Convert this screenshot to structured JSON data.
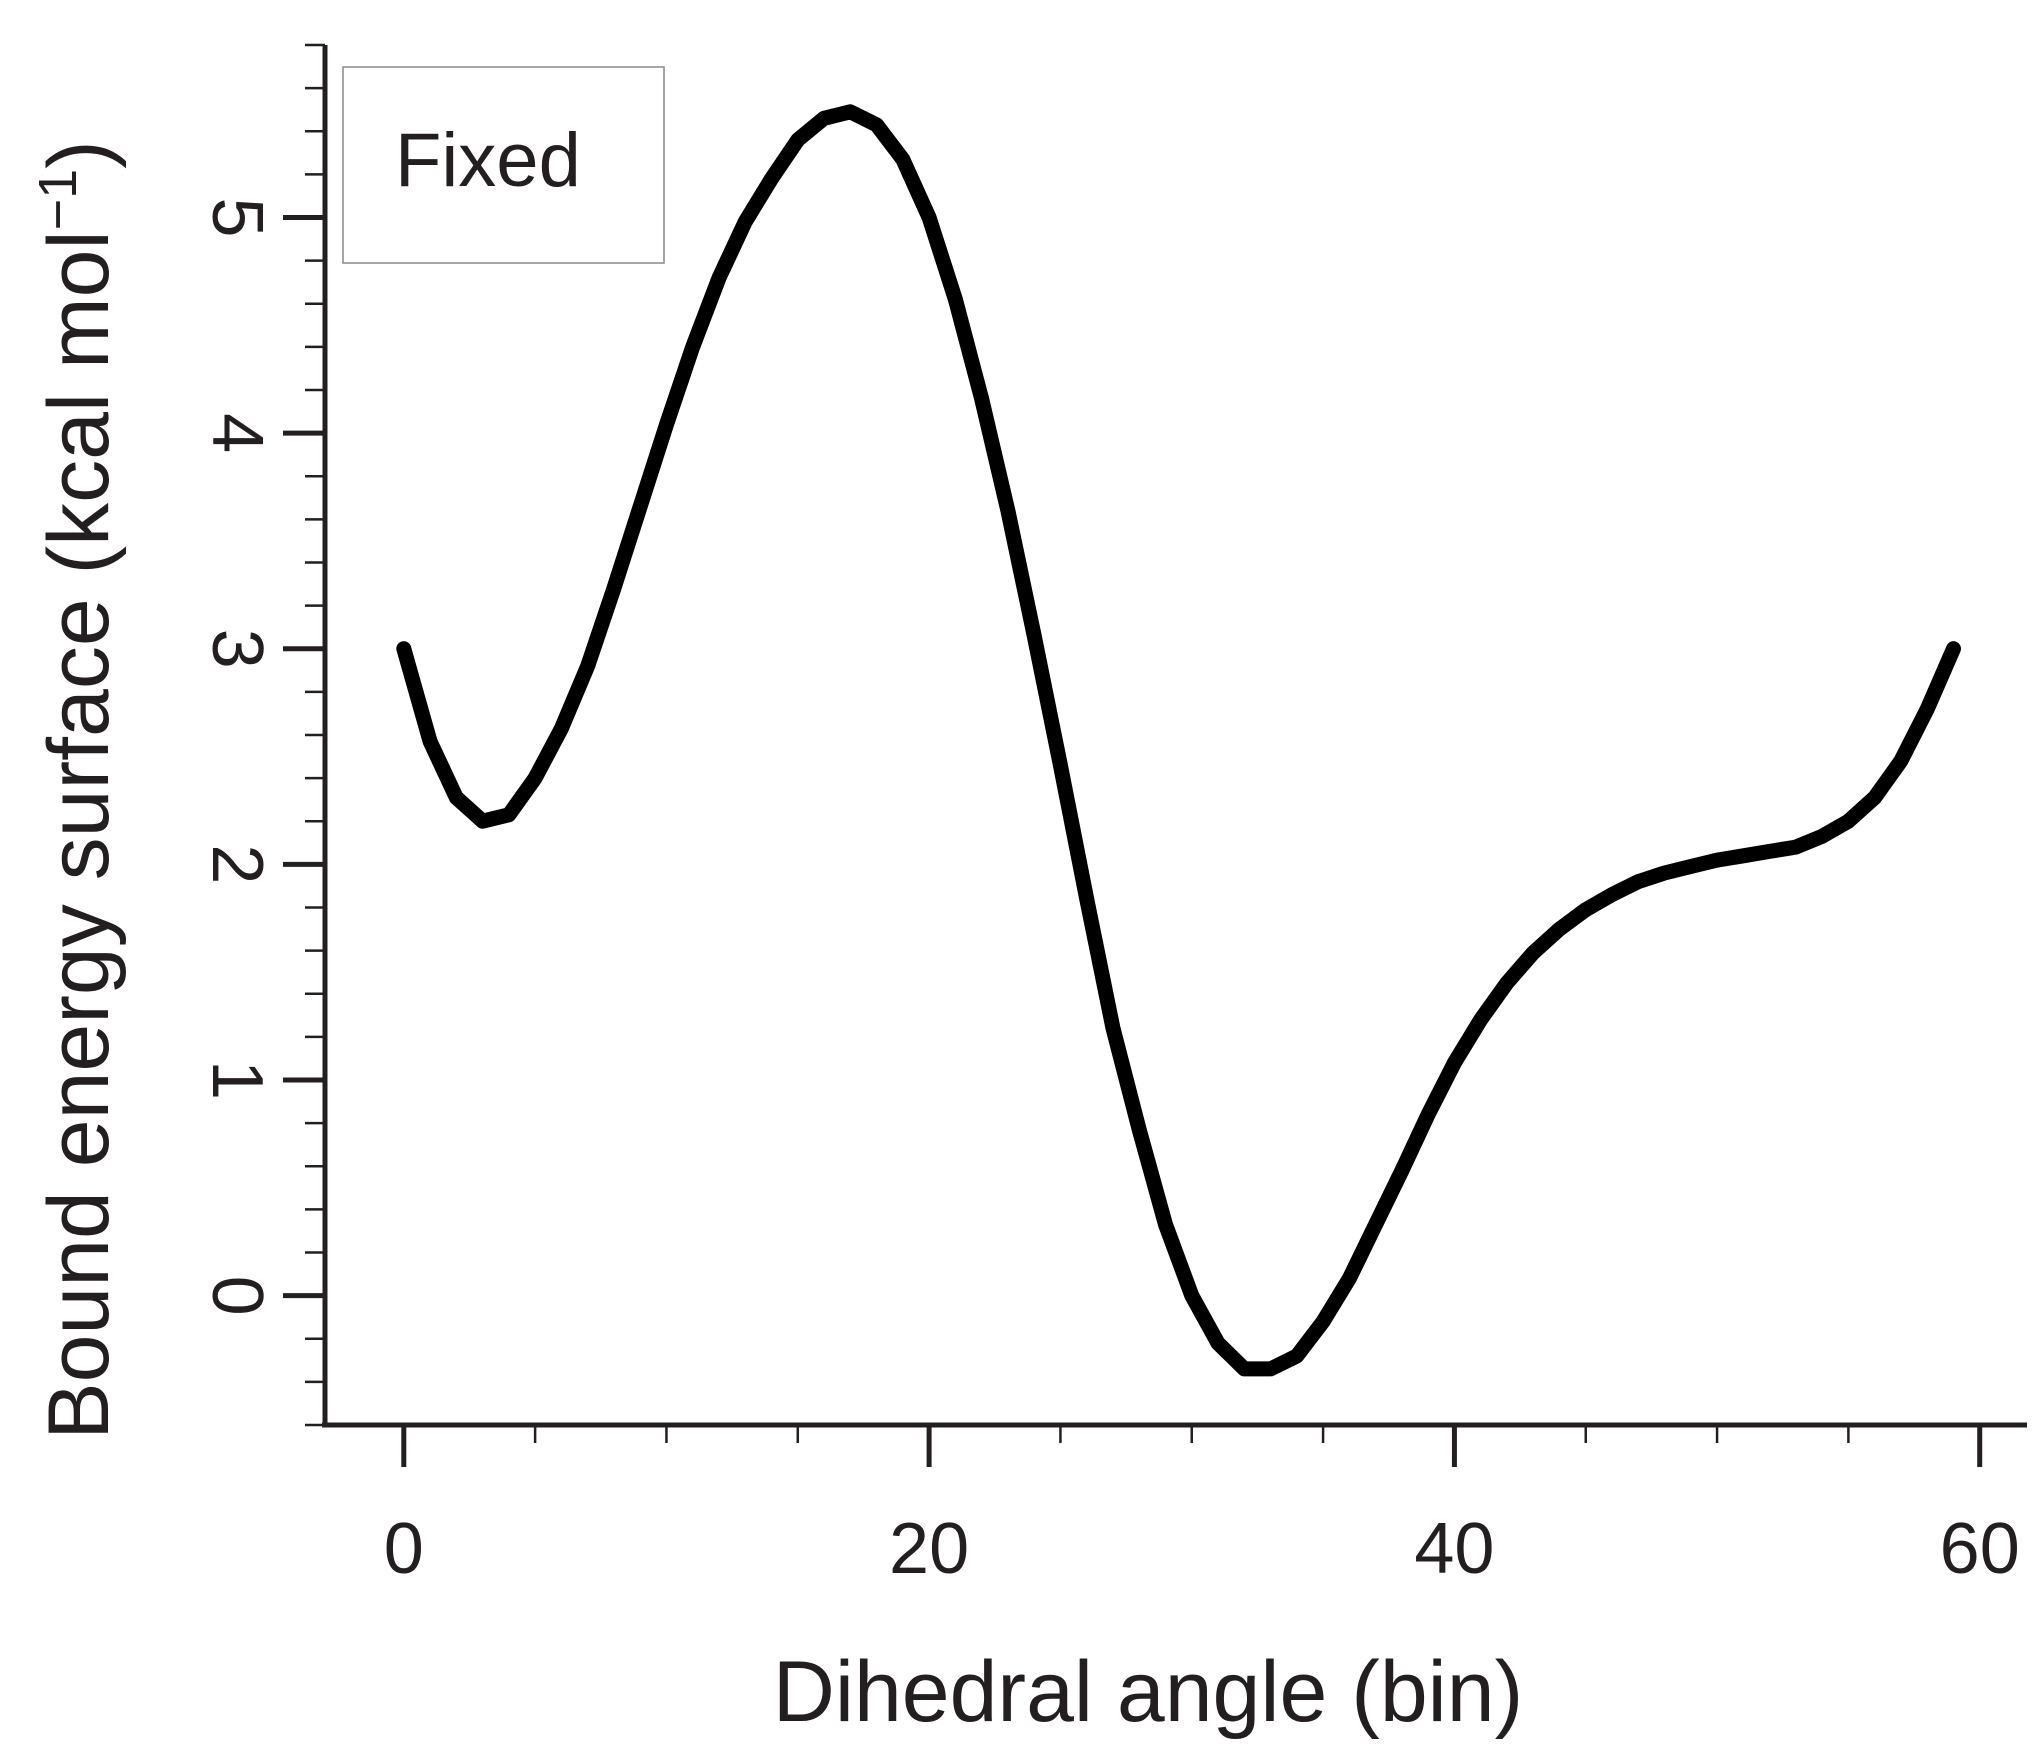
{
  "chart_data": {
    "type": "line",
    "legend_label": "Fixed",
    "legend_position": "top-left",
    "xlabel": "Dihedral angle (bin)",
    "ylabel_main": "Bound energy surface (kcal mol",
    "ylabel_sup": "−1",
    "ylabel_close": ")",
    "xlim": [
      -3,
      61.8
    ],
    "ylim": [
      -0.6,
      5.8
    ],
    "x_ticks_major": [
      0,
      20,
      40,
      60
    ],
    "x_tick_labels": [
      "0",
      "20",
      "40",
      "60"
    ],
    "x_ticks_minor": [
      5,
      10,
      15,
      25,
      30,
      35,
      45,
      50,
      55
    ],
    "y_ticks_major": [
      0,
      1,
      2,
      3,
      4,
      5
    ],
    "y_tick_labels": [
      "0",
      "1",
      "2",
      "3",
      "4",
      "5"
    ],
    "y_minor_step": 0.2,
    "line_color": "#000000",
    "axis_color": "#231f20",
    "series": [
      {
        "x": [
          0,
          1,
          2,
          3,
          4,
          5,
          6,
          7,
          8,
          9,
          10,
          11,
          12,
          13,
          14,
          15,
          16,
          17,
          18,
          19,
          20,
          21,
          22,
          23,
          24,
          25,
          26,
          27,
          28,
          29,
          30,
          31,
          32,
          33,
          34,
          35,
          36,
          37,
          38,
          39,
          40,
          41,
          42,
          43,
          44,
          45,
          46,
          47,
          48,
          49,
          50,
          51,
          52,
          53,
          54,
          55,
          56,
          57,
          58,
          59
        ],
        "values": [
          3.0,
          2.57,
          2.31,
          2.2,
          2.23,
          2.4,
          2.63,
          2.92,
          3.28,
          3.66,
          4.04,
          4.4,
          4.72,
          4.98,
          5.18,
          5.36,
          5.46,
          5.49,
          5.43,
          5.27,
          5.0,
          4.62,
          4.16,
          3.64,
          3.06,
          2.46,
          1.84,
          1.24,
          0.77,
          0.33,
          0.0,
          -0.22,
          -0.34,
          -0.34,
          -0.28,
          -0.12,
          0.08,
          0.33,
          0.58,
          0.84,
          1.08,
          1.28,
          1.45,
          1.59,
          1.7,
          1.79,
          1.86,
          1.92,
          1.96,
          1.99,
          2.02,
          2.04,
          2.06,
          2.08,
          2.13,
          2.2,
          2.31,
          2.48,
          2.72,
          3.0
        ]
      }
    ]
  }
}
